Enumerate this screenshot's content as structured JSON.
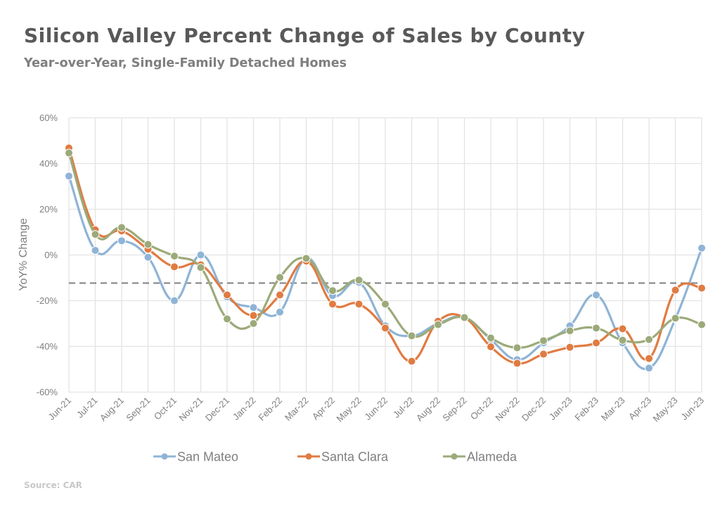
{
  "header": {
    "title": "Silicon Valley Percent Change of Sales by County",
    "subtitle": "Year-over-Year, Single-Family Detached Homes"
  },
  "footer": {
    "source": "Source: CAR"
  },
  "chart_data": {
    "type": "line",
    "title": "Silicon Valley Percent Change of Sales by County",
    "subtitle": "Year-over-Year, Single-Family Detached Homes",
    "xlabel": "",
    "ylabel": "YoY% Change",
    "ylim": [
      -60,
      60
    ],
    "yticks": [
      60,
      40,
      20,
      0,
      -20,
      -40,
      -60
    ],
    "ytick_labels": [
      "60%",
      "40%",
      "20%",
      "0%",
      "-20%",
      "-40%",
      "-60%"
    ],
    "grid": true,
    "legend_position": "bottom",
    "reference_line": {
      "value": -12.3,
      "style": "dashed",
      "color": "#7f7f7f"
    },
    "categories": [
      "Jun-21",
      "Jul-21",
      "Aug-21",
      "Sep-21",
      "Oct-21",
      "Nov-21",
      "Dec-21",
      "Jan-22",
      "Feb-22",
      "Mar-22",
      "Apr-22",
      "May-22",
      "Jun-22",
      "Jul-22",
      "Aug-22",
      "Sep-22",
      "Oct-22",
      "Nov-22",
      "Dec-22",
      "Jan-23",
      "Feb-23",
      "Mar-23",
      "Apr-23",
      "May-23",
      "Jun-23"
    ],
    "series": [
      {
        "name": "San Mateo",
        "color": "#8fb4d6",
        "values": [
          34.5,
          2,
          6.2,
          -1,
          -20,
          0,
          -18.4,
          -23,
          -25,
          -1.5,
          -17.8,
          -12,
          -31,
          -35.4,
          -30,
          -27.4,
          -37,
          -45.8,
          -38.5,
          -31,
          -17.5,
          -38.5,
          -49.5,
          -28,
          3
        ]
      },
      {
        "name": "Santa Clara",
        "color": "#e07b42",
        "values": [
          46.8,
          11,
          10.5,
          2.5,
          -5.2,
          -4.3,
          -17.5,
          -26.5,
          -17.5,
          -2.7,
          -21.5,
          -21.5,
          -32,
          -46.5,
          -29,
          -27.4,
          -40.2,
          -47.4,
          -43.4,
          -40.4,
          -38.5,
          -32.3,
          -45.3,
          -15.4,
          -14.5
        ]
      },
      {
        "name": "Alameda",
        "color": "#9caa7a",
        "values": [
          44.6,
          9,
          12,
          4.6,
          -0.5,
          -5.5,
          -28,
          -30,
          -9.8,
          -1.5,
          -15.6,
          -11,
          -21.5,
          -35.4,
          -30.5,
          -27.4,
          -36.3,
          -40.6,
          -37.5,
          -33.2,
          -32,
          -37.3,
          -37,
          -27.7,
          -30.5
        ]
      }
    ]
  }
}
